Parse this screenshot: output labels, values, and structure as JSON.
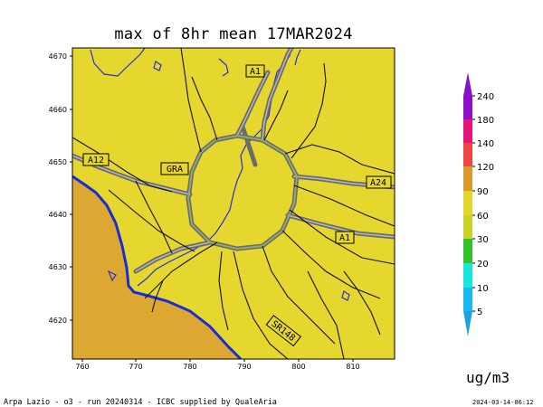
{
  "title": "max of 8hr mean 17MAR2024",
  "y_ticks": [
    "4670",
    "4660",
    "4650",
    "4640",
    "4630",
    "4620"
  ],
  "x_ticks": [
    "760",
    "770",
    "780",
    "790",
    "800",
    "810"
  ],
  "road_labels": [
    "A1",
    "A12",
    "GRA",
    "A24",
    "A1",
    "SR148"
  ],
  "colorbar": {
    "labels": [
      "240",
      "180",
      "140",
      "120",
      "90",
      "60",
      "30",
      "20",
      "10",
      "5"
    ],
    "colors": [
      "#8b10c8",
      "#e8147a",
      "#ef4444",
      "#d99a2b",
      "#e4d52e",
      "#c7d32b",
      "#35c12b",
      "#18e6d9",
      "#19b8ee",
      "#1ea0e6"
    ],
    "units": "ug/m3"
  },
  "map_colors": {
    "land": "#e6d72f",
    "coast_area": "#dca832",
    "coastline": "#1a2bd8",
    "rivers": "#2230d0",
    "ring_road": "#8aa860"
  },
  "footer": {
    "credit": "Arpa Lazio - o3 - run 20240314 - ICBC supplied by QualeAria",
    "timestamp": "2024-03-14-06:12"
  }
}
